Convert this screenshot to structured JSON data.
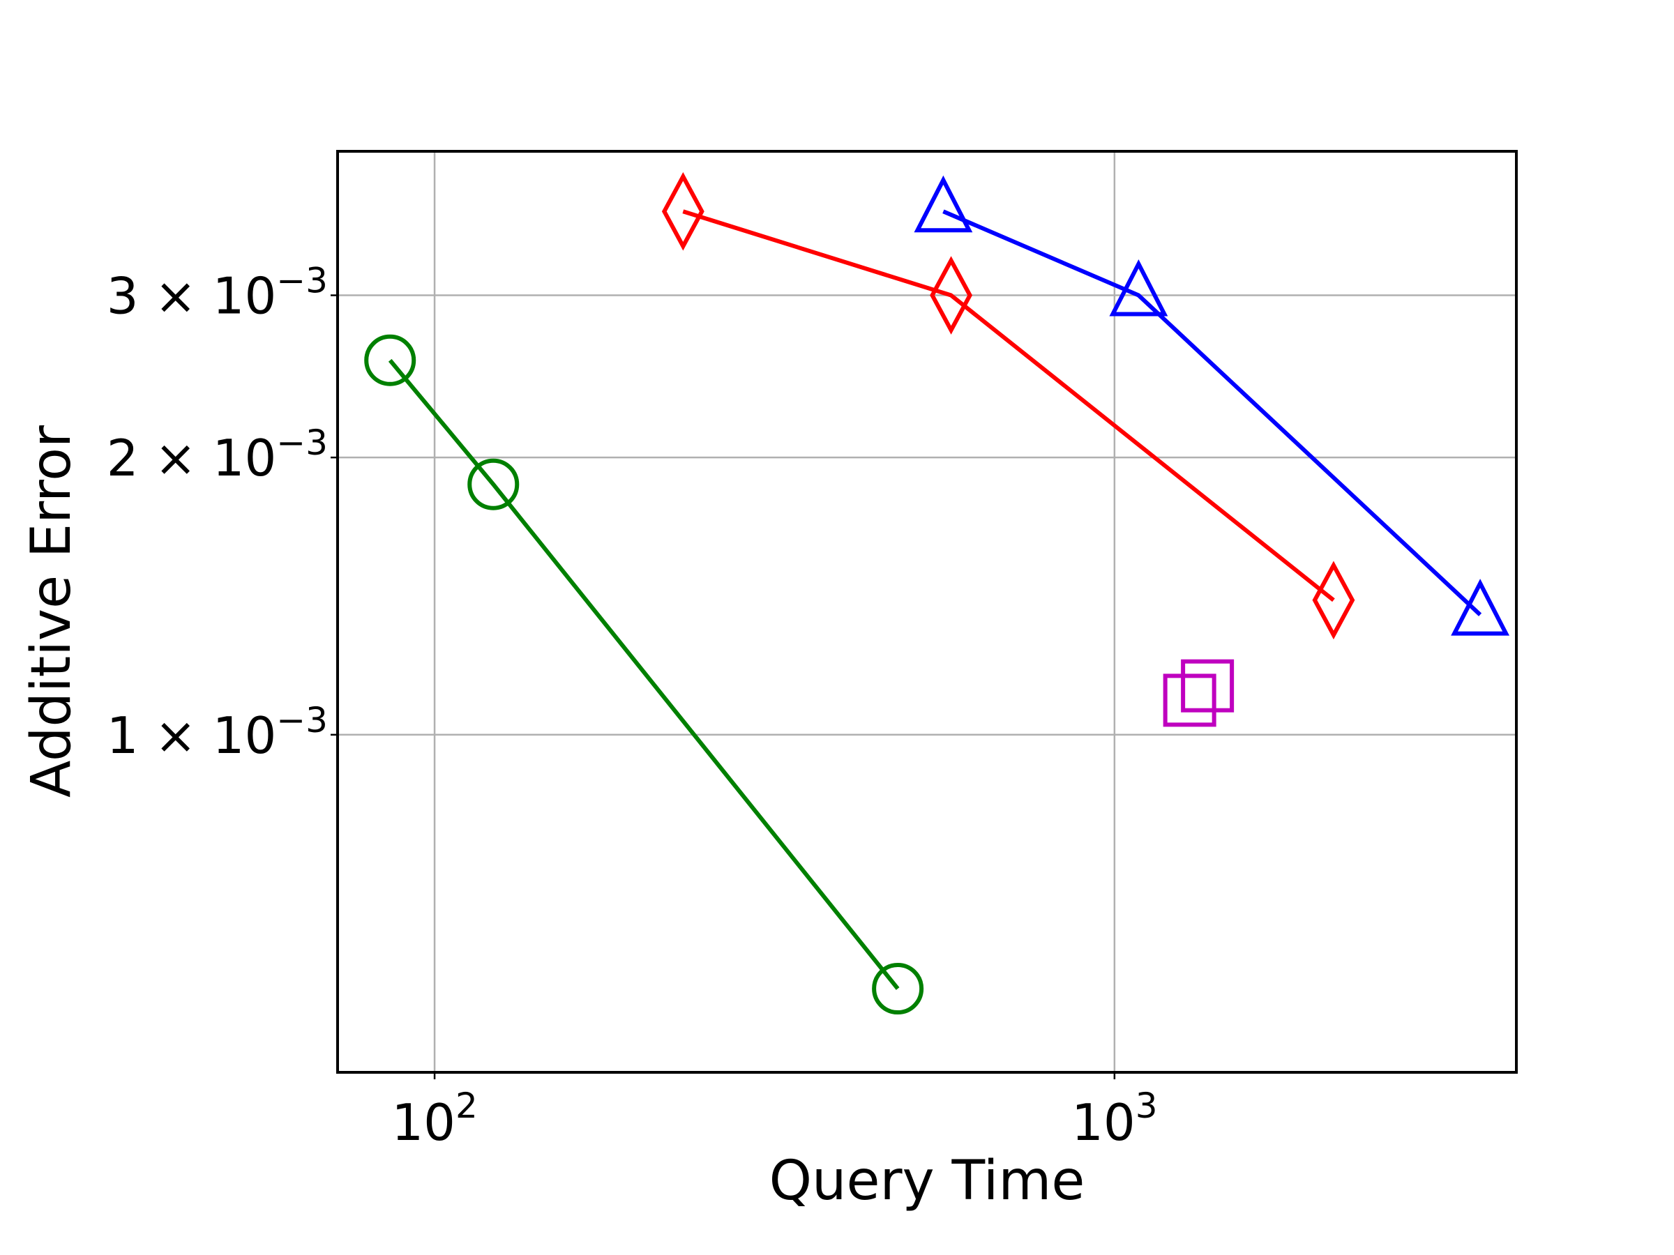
{
  "chart_data": {
    "type": "line",
    "title": "",
    "xlabel": "Query Time",
    "ylabel": "Additive Error",
    "x_scale": "log",
    "y_scale": "log",
    "xlim": [
      72,
      3900
    ],
    "ylim": [
      0.00043,
      0.0043
    ],
    "grid": true,
    "x_ticks": [
      {
        "value": 100,
        "base": "10",
        "exp": "2"
      },
      {
        "value": 1000,
        "base": "10",
        "exp": "3"
      }
    ],
    "y_ticks": [
      {
        "value": 0.001,
        "mant": "1 × 10",
        "exp": "−3"
      },
      {
        "value": 0.002,
        "mant": "2 × 10",
        "exp": "−3"
      },
      {
        "value": 0.003,
        "mant": "3 × 10",
        "exp": "−3"
      }
    ],
    "series": [
      {
        "color": "#008000",
        "marker": "circle",
        "line": true,
        "x": [
          86,
          122,
          480
        ],
        "y": [
          0.00255,
          0.00187,
          0.00053
        ]
      },
      {
        "color": "#ff0000",
        "marker": "diamond",
        "line": true,
        "x": [
          232,
          575,
          2100
        ],
        "y": [
          0.0037,
          0.003,
          0.0014
        ]
      },
      {
        "color": "#0000ff",
        "marker": "triangle",
        "line": true,
        "x": [
          560,
          1085,
          3450
        ],
        "y": [
          0.0037,
          0.003,
          0.00135
        ]
      },
      {
        "color": "#bf00bf",
        "marker": "square",
        "line": false,
        "x": [
          1290,
          1370
        ],
        "y": [
          0.00109,
          0.00113
        ]
      }
    ]
  }
}
